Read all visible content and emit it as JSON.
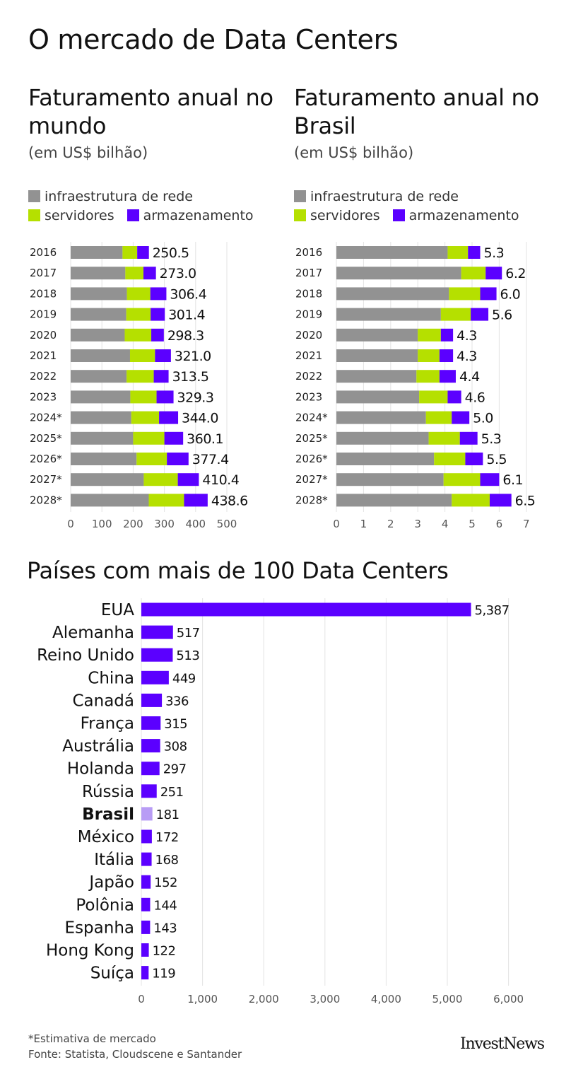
{
  "main_title": "O mercado de Data Centers",
  "chart_data": [
    {
      "type": "bar",
      "orientation": "horizontal",
      "stacked": true,
      "title": "Faturamento anual no mundo",
      "subtitle": "(em US$ bilhão)",
      "categories": [
        "2016",
        "2017",
        "2018",
        "2019",
        "2020",
        "2021",
        "2022",
        "2023",
        "2024*",
        "2025*",
        "2026*",
        "2027*",
        "2028*"
      ],
      "series": [
        {
          "name": "infraestrutura de rede",
          "color": "#929292",
          "values": [
            166,
            175,
            180,
            178,
            173,
            190,
            179,
            191,
            194,
            200,
            211,
            234,
            250
          ]
        },
        {
          "name": "servidores",
          "color": "#b5e000",
          "values": [
            47,
            58,
            75,
            78,
            85,
            80,
            87,
            84,
            89,
            100,
            97,
            109,
            113
          ]
        },
        {
          "name": "armazenamento",
          "color": "#5b00ff",
          "values": [
            37.5,
            40,
            51.4,
            45.4,
            40.3,
            51,
            47.5,
            54.3,
            61,
            60.1,
            69.4,
            67.4,
            75.6
          ]
        }
      ],
      "totals": [
        "250.5",
        "273.0",
        "306.4",
        "301.4",
        "298.3",
        "321.0",
        "313.5",
        "329.3",
        "344.0",
        "360.1",
        "377.4",
        "410.4",
        "438.6"
      ],
      "xticks": [
        0,
        100,
        200,
        300,
        400,
        500
      ],
      "xlim": [
        0,
        500
      ],
      "grid": true,
      "legend": "top"
    },
    {
      "type": "bar",
      "orientation": "horizontal",
      "stacked": true,
      "title": "Faturamento anual no Brasil",
      "subtitle": "(em US$ bilhão)",
      "categories": [
        "2016",
        "2017",
        "2018",
        "2019",
        "2020",
        "2021",
        "2022",
        "2023",
        "2024*",
        "2025*",
        "2026*",
        "2027*",
        "2028*"
      ],
      "series": [
        {
          "name": "infraestrutura de rede",
          "color": "#929292",
          "values": [
            4.1,
            4.6,
            4.15,
            3.85,
            3.0,
            3.0,
            2.95,
            3.05,
            3.3,
            3.4,
            3.6,
            3.95,
            4.25
          ]
        },
        {
          "name": "servidores",
          "color": "#b5e000",
          "values": [
            0.75,
            0.9,
            1.15,
            1.1,
            0.85,
            0.8,
            0.85,
            1.05,
            0.95,
            1.15,
            1.15,
            1.35,
            1.4
          ]
        },
        {
          "name": "armazenamento",
          "color": "#5b00ff",
          "values": [
            0.45,
            0.6,
            0.6,
            0.65,
            0.45,
            0.5,
            0.6,
            0.5,
            0.65,
            0.65,
            0.65,
            0.7,
            0.8
          ]
        }
      ],
      "totals": [
        "5.3",
        "6.2",
        "6.0",
        "5.6",
        "4.3",
        "4.3",
        "4.4",
        "4.6",
        "5.0",
        "5.3",
        "5.5",
        "6.1",
        "6.5"
      ],
      "xticks": [
        0,
        1,
        2,
        3,
        4,
        5,
        6,
        7
      ],
      "xlim": [
        0,
        7
      ],
      "grid": true,
      "legend": "top"
    },
    {
      "type": "bar",
      "orientation": "horizontal",
      "title": "Países com mais de 100 Data Centers",
      "categories": [
        "EUA",
        "Alemanha",
        "Reino Unido",
        "China",
        "Canadá",
        "França",
        "Austrália",
        "Holanda",
        "Rússia",
        "Brasil",
        "México",
        "Itália",
        "Japão",
        "Polônia",
        "Espanha",
        "Hong Kong",
        "Suíça"
      ],
      "values": [
        5387,
        517,
        513,
        449,
        336,
        315,
        308,
        297,
        251,
        181,
        172,
        168,
        152,
        144,
        143,
        122,
        119
      ],
      "labels": [
        "5,387",
        "517",
        "513",
        "449",
        "336",
        "315",
        "308",
        "297",
        "251",
        "181",
        "172",
        "168",
        "152",
        "144",
        "143",
        "122",
        "119"
      ],
      "highlight": "Brasil",
      "bar_color": "#5b00ff",
      "highlight_color": "#b89cf5",
      "xticks": [
        "0",
        "1,000",
        "2,000",
        "3,000",
        "4,000",
        "5,000",
        "6,000"
      ],
      "xlim": [
        0,
        6000
      ],
      "grid": true
    }
  ],
  "footnote": {
    "estimate": "*Estimativa de mercado",
    "source": "Fonte: Statista, Cloudscene e Santander"
  },
  "logo": "InvestNews"
}
